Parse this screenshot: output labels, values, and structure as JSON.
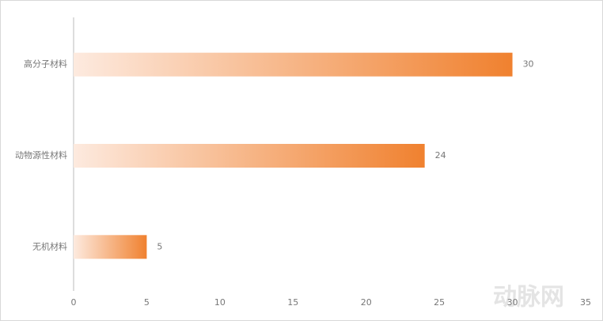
{
  "chart_data": {
    "type": "barh",
    "categories": [
      "高分子材料",
      "动物源性材料",
      "无机材料"
    ],
    "values": [
      30,
      24,
      5
    ],
    "color_start": "#fdeadf",
    "color": "#f0812f",
    "xlim": [
      0,
      35
    ],
    "xticks": [
      0,
      5,
      10,
      15,
      20,
      25,
      30,
      35
    ],
    "watermark": "动脉网"
  }
}
